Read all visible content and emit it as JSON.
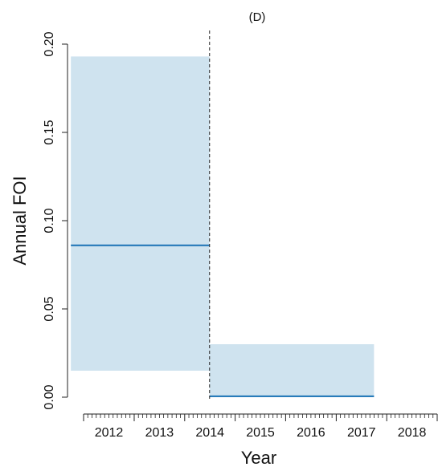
{
  "chart_data": {
    "type": "step-band",
    "title": "(D)",
    "xlabel": "Year",
    "ylabel": "Annual FOI",
    "ylim": [
      0,
      0.2
    ],
    "yticks": [
      0.0,
      0.05,
      0.1,
      0.15,
      0.2
    ],
    "ytick_labels": [
      "0.00",
      "0.05",
      "0.10",
      "0.15",
      "0.20"
    ],
    "x_tick_labels": [
      "2012",
      "2013",
      "2014",
      "2015",
      "2016",
      "2017",
      "2018"
    ],
    "x_major_breaks": [
      "2012-01-01",
      "2013-01-01",
      "2014-01-01",
      "2015-01-01",
      "2016-01-01",
      "2017-01-01",
      "2018-01-01",
      "2019-01-01"
    ],
    "x_range": [
      "2012-01-01",
      "2019-01-01"
    ],
    "changepoint": "2014-06-30",
    "segments": [
      {
        "start": "2011-10-01",
        "end": "2014-06-30",
        "estimate": 0.086,
        "lower": 0.015,
        "upper": 0.193
      },
      {
        "start": "2014-06-30",
        "end": "2017-10-01",
        "estimate": 0.0005,
        "lower": 0.0,
        "upper": 0.03
      }
    ],
    "colors": {
      "band": "#cfe3ef",
      "line": "#1a73b5",
      "axis": "#222222",
      "changepoint": "#222222"
    },
    "grid": false
  }
}
